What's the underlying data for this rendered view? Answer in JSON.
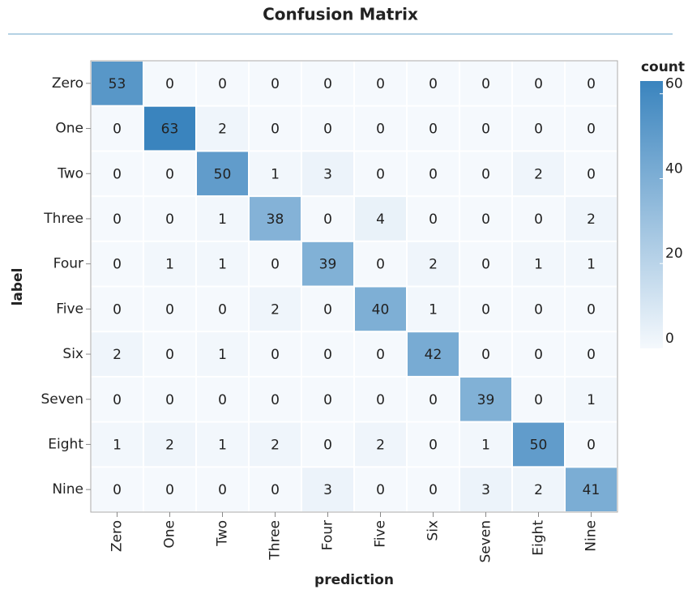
{
  "chart_data": {
    "type": "heatmap",
    "title": "Confusion Matrix",
    "x_label": "prediction",
    "y_label": "label",
    "x_categories": [
      "Zero",
      "One",
      "Two",
      "Three",
      "Four",
      "Five",
      "Six",
      "Seven",
      "Eight",
      "Nine"
    ],
    "y_categories": [
      "Zero",
      "One",
      "Two",
      "Three",
      "Four",
      "Five",
      "Six",
      "Seven",
      "Eight",
      "Nine"
    ],
    "values": [
      [
        53,
        0,
        0,
        0,
        0,
        0,
        0,
        0,
        0,
        0
      ],
      [
        0,
        63,
        2,
        0,
        0,
        0,
        0,
        0,
        0,
        0
      ],
      [
        0,
        0,
        50,
        1,
        3,
        0,
        0,
        0,
        2,
        0
      ],
      [
        0,
        0,
        1,
        38,
        0,
        4,
        0,
        0,
        0,
        2
      ],
      [
        0,
        1,
        1,
        0,
        39,
        0,
        2,
        0,
        1,
        1
      ],
      [
        0,
        0,
        0,
        2,
        0,
        40,
        1,
        0,
        0,
        0
      ],
      [
        2,
        0,
        1,
        0,
        0,
        0,
        42,
        0,
        0,
        0
      ],
      [
        0,
        0,
        0,
        0,
        0,
        0,
        0,
        39,
        0,
        1
      ],
      [
        1,
        2,
        1,
        2,
        0,
        2,
        0,
        1,
        50,
        0
      ],
      [
        0,
        0,
        0,
        0,
        3,
        0,
        0,
        3,
        2,
        41
      ]
    ],
    "colorbar": {
      "title": "count",
      "lim": [
        0,
        63
      ],
      "ticks": [
        0,
        20,
        40,
        60
      ],
      "colors": [
        "#f5f9fd",
        "#3a84be"
      ]
    }
  }
}
